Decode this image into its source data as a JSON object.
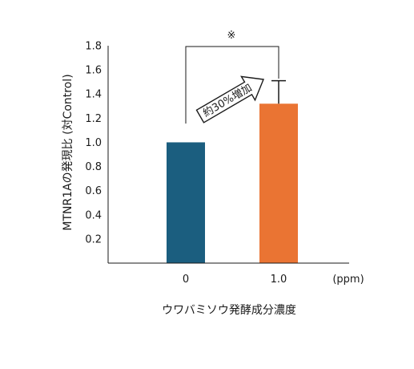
{
  "chart_data": {
    "type": "bar",
    "categories": [
      "0",
      "1.0"
    ],
    "values": [
      1.0,
      1.32
    ],
    "error_bars": [
      null,
      0.19
    ],
    "bar_colors": [
      "#1b5e7f",
      "#ea7433"
    ],
    "xlabel": "ウワバミソウ発酵成分濃度",
    "x_unit": "(ppm)",
    "ylabel": "MTNR1Aの発現比 (対Control)",
    "ylim": [
      0,
      1.8
    ],
    "yticks": [
      "0.2",
      "0.4",
      "0.6",
      "0.8",
      "1.0",
      "1.2",
      "1.4",
      "1.6",
      "1.8"
    ],
    "grid": false,
    "annotations": {
      "arrow_text": "約30%増加",
      "significance_mark": "※"
    }
  }
}
